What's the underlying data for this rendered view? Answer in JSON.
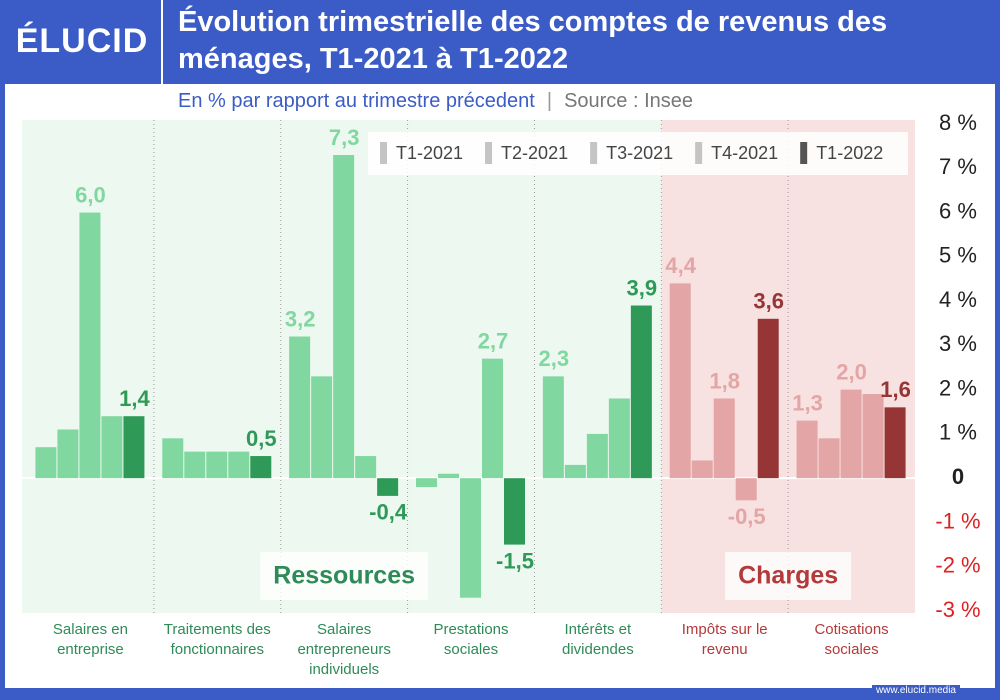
{
  "logo": "ÉLUCID",
  "footer": "www.elucid.media",
  "chart_data": {
    "type": "bar",
    "title": "Évolution trimestrielle des comptes de revenus des ménages, T1-2021 à T1-2022",
    "subtitle": "En % par rapport au trimestre précedent",
    "source": "Source : Insee",
    "groups": [
      {
        "label": "Ressources",
        "categories": [
          "Salaires en entreprise",
          "Traitements des fonctionnaires",
          "Salaires entrepreneurs individuels",
          "Prestations sociales",
          "Intérêts et dividendes"
        ],
        "colors": [
          "#80d8a0",
          "#80d8a0",
          "#80d8a0",
          "#80d8a0",
          "#2f9a58"
        ],
        "label_color": "#2e8b57",
        "background": "#edf8f0"
      },
      {
        "label": "Charges",
        "categories": [
          "Impôts sur le revenu",
          "Cotisations sociales"
        ],
        "colors": [
          "#e3a5a5",
          "#e3a5a5",
          "#e3a5a5",
          "#e3a5a5",
          "#963535"
        ],
        "label_color": "#b33a3a",
        "background": "#f8e1e1"
      }
    ],
    "series": [
      {
        "name": "T1-2021",
        "color": "#c4c4c4",
        "values": [
          0.7,
          0.9,
          3.2,
          -0.2,
          2.3,
          4.4,
          1.3
        ],
        "value_labels": [
          null,
          null,
          "3,2",
          null,
          "2,3",
          "4,4",
          "1,3"
        ]
      },
      {
        "name": "T2-2021",
        "color": "#c4c4c4",
        "values": [
          1.1,
          0.6,
          2.3,
          0.1,
          0.3,
          0.4,
          0.9
        ],
        "value_labels": [
          null,
          null,
          null,
          null,
          null,
          null,
          null
        ]
      },
      {
        "name": "T3-2021",
        "color": "#c4c4c4",
        "values": [
          6.0,
          0.6,
          7.3,
          -2.7,
          1.0,
          1.8,
          2.0
        ],
        "value_labels": [
          "6,0",
          null,
          "7,3",
          null,
          null,
          "1,8",
          "2,0"
        ]
      },
      {
        "name": "T4-2021",
        "color": "#c4c4c4",
        "values": [
          1.4,
          0.6,
          0.5,
          2.7,
          1.8,
          -0.5,
          1.9
        ],
        "value_labels": [
          null,
          null,
          null,
          "2,7",
          null,
          "-0,5",
          null
        ]
      },
      {
        "name": "T1-2022",
        "color": "#555555",
        "values": [
          1.4,
          0.5,
          -0.4,
          -1.5,
          3.9,
          3.6,
          1.6
        ],
        "value_labels": [
          "1,4",
          "0,5",
          "-0,4",
          "-1,5",
          "3,9",
          "3,6",
          "1,6"
        ]
      }
    ],
    "ylim": [
      -3,
      8
    ],
    "yticks": [
      {
        "value": -3,
        "label": "-3 %"
      },
      {
        "value": -2,
        "label": "-2 %"
      },
      {
        "value": -1,
        "label": "-1 %"
      },
      0,
      {
        "value": 1,
        "label": "1 %"
      },
      {
        "value": 2,
        "label": "2 %"
      },
      {
        "value": 3,
        "label": "3 %"
      },
      {
        "value": 4,
        "label": "4 %"
      },
      {
        "value": 5,
        "label": "5 %"
      },
      {
        "value": 6,
        "label": "6 %"
      },
      {
        "value": 7,
        "label": "7 %"
      },
      {
        "value": 8,
        "label": "8 %"
      }
    ],
    "negative_tick_color": "#e02020",
    "grid": false
  }
}
